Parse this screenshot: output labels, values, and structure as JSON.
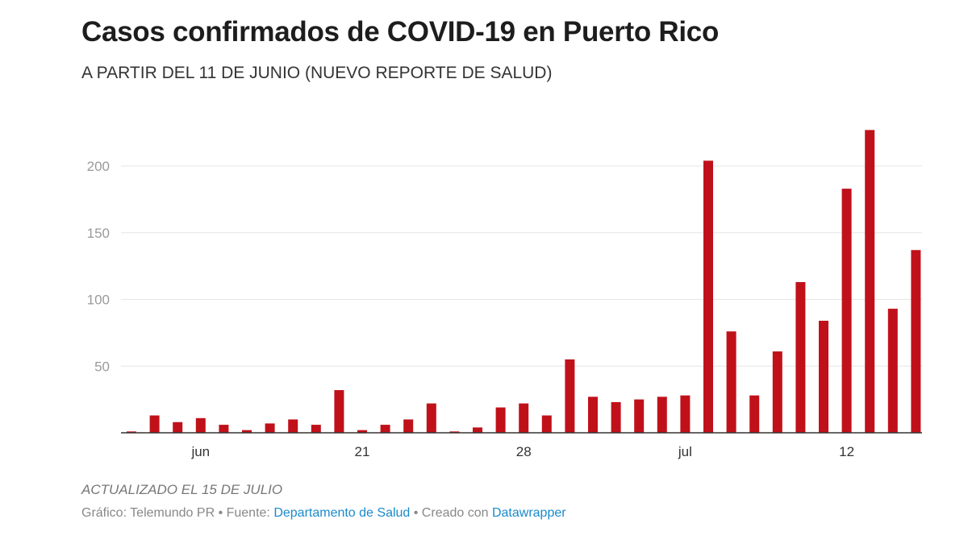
{
  "chart_data": {
    "type": "bar",
    "title": "Casos confirmados de COVID-19 en Puerto Rico",
    "subtitle": "A PARTIR DEL 11 DE JUNIO (NUEVO REPORTE DE SALUD)",
    "xlabel": "",
    "ylabel": "",
    "ylim": [
      0,
      230
    ],
    "yticks": [
      50,
      100,
      150,
      200
    ],
    "grid": true,
    "bar_color": "#c0111a",
    "categories": [
      "2020-06-11",
      "2020-06-12",
      "2020-06-13",
      "2020-06-14",
      "2020-06-15",
      "2020-06-16",
      "2020-06-17",
      "2020-06-18",
      "2020-06-19",
      "2020-06-20",
      "2020-06-21",
      "2020-06-22",
      "2020-06-23",
      "2020-06-24",
      "2020-06-25",
      "2020-06-26",
      "2020-06-27",
      "2020-06-28",
      "2020-06-29",
      "2020-06-30",
      "2020-07-01",
      "2020-07-02",
      "2020-07-03",
      "2020-07-04",
      "2020-07-05",
      "2020-07-06",
      "2020-07-07",
      "2020-07-08",
      "2020-07-09",
      "2020-07-10",
      "2020-07-11",
      "2020-07-12",
      "2020-07-13",
      "2020-07-14",
      "2020-07-15"
    ],
    "values": [
      1,
      13,
      8,
      11,
      6,
      2,
      7,
      10,
      6,
      32,
      2,
      6,
      10,
      22,
      1,
      4,
      19,
      22,
      13,
      55,
      27,
      23,
      25,
      27,
      28,
      204,
      76,
      28,
      61,
      113,
      84,
      183,
      227,
      93,
      137
    ],
    "xticks": [
      {
        "date": "2020-06-14",
        "label": "jun"
      },
      {
        "date": "2020-06-21",
        "label": "21"
      },
      {
        "date": "2020-06-28",
        "label": "28"
      },
      {
        "date": "2020-07-05",
        "label": "jul"
      },
      {
        "date": "2020-07-12",
        "label": "12"
      }
    ]
  },
  "footer": {
    "note": "ACTUALIZADO EL 15 DE JULIO",
    "credit_prefix": "Gráfico: Telemundo PR • Fuente: ",
    "source_link": "Departamento de Salud",
    "created_prefix": " • Creado con ",
    "created_link": "Datawrapper",
    "link_color": "#1a8acb"
  }
}
